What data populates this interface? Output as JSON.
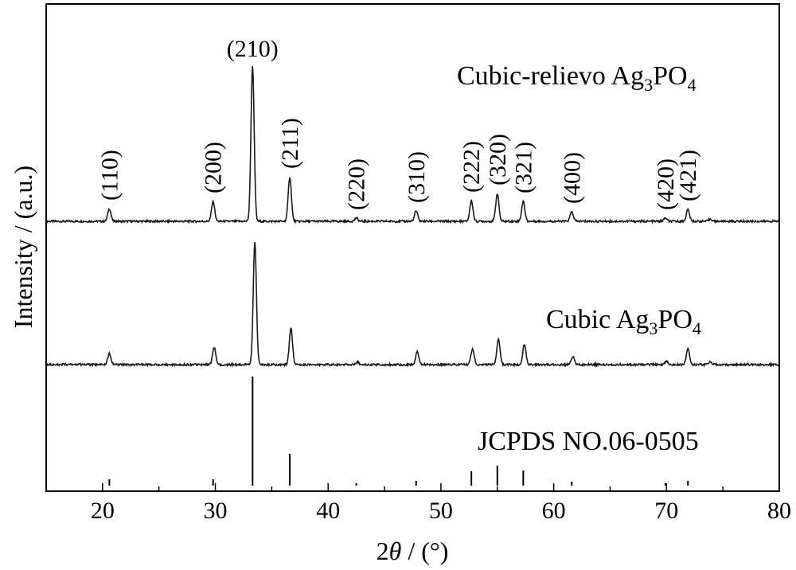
{
  "chart_data": {
    "type": "line",
    "xlabel_prefix": "2",
    "xlabel_symbol": "θ",
    "xlabel_unit": " / (°)",
    "ylabel": "Intensity / (a.u.)",
    "xlim": [
      15,
      80
    ],
    "x_ticks": [
      20,
      30,
      40,
      50,
      60,
      70,
      80
    ],
    "grid": false,
    "legend": "none",
    "series": [
      {
        "label_main": "Cubic-relievo Ag",
        "label_sub1": "3",
        "label_mid": "PO",
        "label_sub2": "4",
        "baseline": 1.9,
        "peaks": [
          {
            "x": 20.6,
            "h": 0.16
          },
          {
            "x": 29.8,
            "h": 0.25
          },
          {
            "x": 33.3,
            "h": 1.95
          },
          {
            "x": 36.6,
            "h": 0.56
          },
          {
            "x": 42.5,
            "h": 0.04
          },
          {
            "x": 47.8,
            "h": 0.13
          },
          {
            "x": 52.7,
            "h": 0.26
          },
          {
            "x": 55.0,
            "h": 0.35
          },
          {
            "x": 57.3,
            "h": 0.25
          },
          {
            "x": 61.6,
            "h": 0.12
          },
          {
            "x": 69.9,
            "h": 0.04
          },
          {
            "x": 71.9,
            "h": 0.15
          },
          {
            "x": 73.9,
            "h": 0.03
          }
        ]
      },
      {
        "label_main": "Cubic Ag",
        "label_sub1": "3",
        "label_mid": "PO",
        "label_sub2": "4",
        "baseline": 0.1,
        "peaks": [
          {
            "x": 20.6,
            "h": 0.14
          },
          {
            "x": 29.9,
            "h": 0.22
          },
          {
            "x": 33.5,
            "h": 1.55
          },
          {
            "x": 36.7,
            "h": 0.46
          },
          {
            "x": 42.6,
            "h": 0.03
          },
          {
            "x": 47.9,
            "h": 0.16
          },
          {
            "x": 52.8,
            "h": 0.2
          },
          {
            "x": 55.1,
            "h": 0.33
          },
          {
            "x": 57.4,
            "h": 0.26
          },
          {
            "x": 61.7,
            "h": 0.1
          },
          {
            "x": 70.0,
            "h": 0.04
          },
          {
            "x": 71.9,
            "h": 0.2
          },
          {
            "x": 73.9,
            "h": 0.03
          }
        ]
      }
    ],
    "reference": {
      "label": "JCPDS NO.06-0505",
      "baseline": -1.42,
      "lines": [
        {
          "x": 20.6,
          "h": 0.08
        },
        {
          "x": 29.8,
          "h": 0.08
        },
        {
          "x": 33.3,
          "h": 1.37
        },
        {
          "x": 36.6,
          "h": 0.4
        },
        {
          "x": 42.5,
          "h": 0.03
        },
        {
          "x": 47.8,
          "h": 0.06
        },
        {
          "x": 52.7,
          "h": 0.18
        },
        {
          "x": 55.0,
          "h": 0.25
        },
        {
          "x": 57.3,
          "h": 0.19
        },
        {
          "x": 61.6,
          "h": 0.05
        },
        {
          "x": 69.9,
          "h": 0.03
        },
        {
          "x": 71.9,
          "h": 0.06
        }
      ]
    },
    "annotations": [
      {
        "text": "(110)",
        "x": 20.6
      },
      {
        "text": "(200)",
        "x": 29.8
      },
      {
        "text": "(210)",
        "x": 33.3
      },
      {
        "text": "(211)",
        "x": 36.6
      },
      {
        "text": "(220)",
        "x": 42.5
      },
      {
        "text": "(310)",
        "x": 47.8
      },
      {
        "text": "(222)",
        "x": 52.7
      },
      {
        "text": "(320)",
        "x": 55.0
      },
      {
        "text": "(321)",
        "x": 57.3
      },
      {
        "text": "(400)",
        "x": 61.6
      },
      {
        "text": "(420)",
        "x": 69.9
      },
      {
        "text": "(421)",
        "x": 71.9
      }
    ]
  }
}
